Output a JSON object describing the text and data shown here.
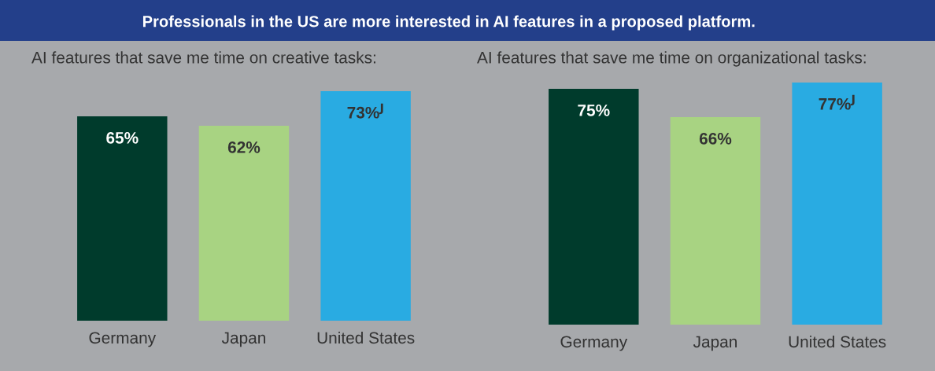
{
  "chart_data": [
    {
      "type": "bar",
      "title": "Professionals in the US are more interested in AI features in a proposed platform.",
      "subtitle": "AI features that save me time on creative tasks:",
      "categories": [
        "Germany",
        "Japan",
        "United States"
      ],
      "values": [
        65,
        62,
        73
      ],
      "colors": [
        "#003b2c",
        "#a8d382",
        "#29abe2"
      ],
      "value_labels": [
        "65%",
        "62%",
        "73%$^{J}$"
      ],
      "tick_labels": "x",
      "grid": false,
      "legend": false
    },
    {
      "type": "bar",
      "subtitle": "AI features that save me time on organizational tasks:",
      "categories": [
        "Germany",
        "Japan",
        "United States"
      ],
      "values": [
        75,
        66,
        77
      ],
      "colors": [
        "#003b2c",
        "#a8d382",
        "#29abe2"
      ],
      "value_labels": [
        "75%",
        "66%",
        "77%$^{J}$"
      ],
      "tick_labels": "x",
      "grid": false,
      "legend": false
    }
  ]
}
